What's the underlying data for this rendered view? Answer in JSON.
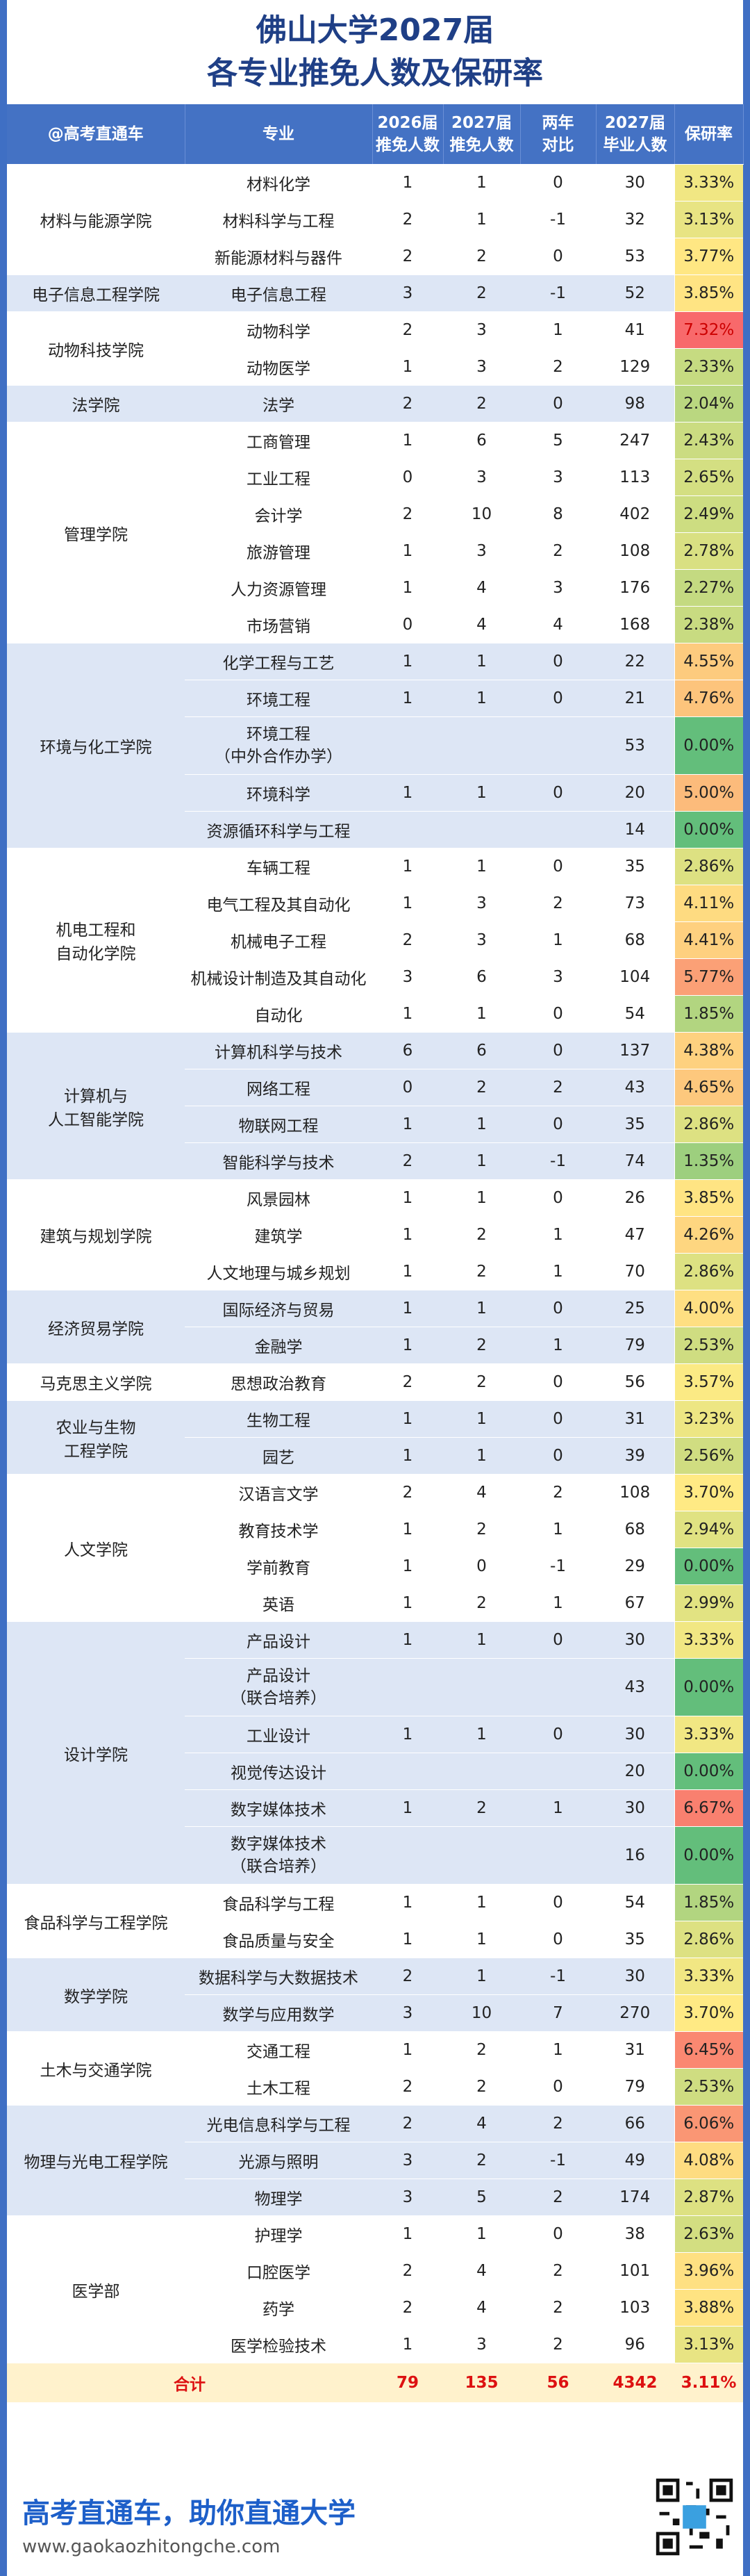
{
  "header": {
    "title_line1": "佛山大学2027届",
    "title_line2": "各专业推免人数及保研率"
  },
  "table": {
    "columns": [
      "@高考直通车",
      "专业",
      "2026届\n推免人数",
      "2027届\n推免人数",
      "两年\n对比",
      "2027届\n毕业人数",
      "保研率"
    ],
    "groups": [
      {
        "college": "材料与能源学院",
        "rows": [
          [
            "材料化学",
            1,
            1,
            0,
            30,
            "3.33%"
          ],
          [
            "材料科学与工程",
            2,
            1,
            -1,
            32,
            "3.13%"
          ],
          [
            "新能源材料与器件",
            2,
            2,
            0,
            53,
            "3.77%"
          ]
        ]
      },
      {
        "college": "电子信息工程学院",
        "rows": [
          [
            "电子信息工程",
            3,
            2,
            -1,
            52,
            "3.85%"
          ]
        ]
      },
      {
        "college": "动物科技学院",
        "rows": [
          [
            "动物科学",
            2,
            3,
            1,
            41,
            "7.32%"
          ],
          [
            "动物医学",
            1,
            3,
            2,
            129,
            "2.33%"
          ]
        ]
      },
      {
        "college": "法学院",
        "rows": [
          [
            "法学",
            2,
            2,
            0,
            98,
            "2.04%"
          ]
        ]
      },
      {
        "college": "管理学院",
        "rows": [
          [
            "工商管理",
            1,
            6,
            5,
            247,
            "2.43%"
          ],
          [
            "工业工程",
            0,
            3,
            3,
            113,
            "2.65%"
          ],
          [
            "会计学",
            2,
            10,
            8,
            402,
            "2.49%"
          ],
          [
            "旅游管理",
            1,
            3,
            2,
            108,
            "2.78%"
          ],
          [
            "人力资源管理",
            1,
            4,
            3,
            176,
            "2.27%"
          ],
          [
            "市场营销",
            0,
            4,
            4,
            168,
            "2.38%"
          ]
        ]
      },
      {
        "college": "环境与化工学院",
        "rows": [
          [
            "化学工程与工艺",
            1,
            1,
            0,
            22,
            "4.55%"
          ],
          [
            "环境工程",
            1,
            1,
            0,
            21,
            "4.76%"
          ],
          [
            "环境工程\n（中外合作办学）",
            null,
            null,
            null,
            53,
            "0.00%"
          ],
          [
            "环境科学",
            1,
            1,
            0,
            20,
            "5.00%"
          ],
          [
            "资源循环科学与工程",
            null,
            null,
            null,
            14,
            "0.00%"
          ]
        ]
      },
      {
        "college": "机电工程和\n自动化学院",
        "rows": [
          [
            "车辆工程",
            1,
            1,
            0,
            35,
            "2.86%"
          ],
          [
            "电气工程及其自动化",
            1,
            3,
            2,
            73,
            "4.11%"
          ],
          [
            "机械电子工程",
            2,
            3,
            1,
            68,
            "4.41%"
          ],
          [
            "机械设计制造及其自动化",
            3,
            6,
            3,
            104,
            "5.77%"
          ],
          [
            "自动化",
            1,
            1,
            0,
            54,
            "1.85%"
          ]
        ]
      },
      {
        "college": "计算机与\n人工智能学院",
        "rows": [
          [
            "计算机科学与技术",
            6,
            6,
            0,
            137,
            "4.38%"
          ],
          [
            "网络工程",
            0,
            2,
            2,
            43,
            "4.65%"
          ],
          [
            "物联网工程",
            1,
            1,
            0,
            35,
            "2.86%"
          ],
          [
            "智能科学与技术",
            2,
            1,
            -1,
            74,
            "1.35%"
          ]
        ]
      },
      {
        "college": "建筑与规划学院",
        "rows": [
          [
            "风景园林",
            1,
            1,
            0,
            26,
            "3.85%"
          ],
          [
            "建筑学",
            1,
            2,
            1,
            47,
            "4.26%"
          ],
          [
            "人文地理与城乡规划",
            1,
            2,
            1,
            70,
            "2.86%"
          ]
        ]
      },
      {
        "college": "经济贸易学院",
        "rows": [
          [
            "国际经济与贸易",
            1,
            1,
            0,
            25,
            "4.00%"
          ],
          [
            "金融学",
            1,
            2,
            1,
            79,
            "2.53%"
          ]
        ]
      },
      {
        "college": "马克思主义学院",
        "rows": [
          [
            "思想政治教育",
            2,
            2,
            0,
            56,
            "3.57%"
          ]
        ]
      },
      {
        "college": "农业与生物\n工程学院",
        "rows": [
          [
            "生物工程",
            1,
            1,
            0,
            31,
            "3.23%"
          ],
          [
            "园艺",
            1,
            1,
            0,
            39,
            "2.56%"
          ]
        ]
      },
      {
        "college": "人文学院",
        "rows": [
          [
            "汉语言文学",
            2,
            4,
            2,
            108,
            "3.70%"
          ],
          [
            "教育技术学",
            1,
            2,
            1,
            68,
            "2.94%"
          ],
          [
            "学前教育",
            1,
            0,
            -1,
            29,
            "0.00%"
          ],
          [
            "英语",
            1,
            2,
            1,
            67,
            "2.99%"
          ]
        ]
      },
      {
        "college": "设计学院",
        "rows": [
          [
            "产品设计",
            1,
            1,
            0,
            30,
            "3.33%"
          ],
          [
            "产品设计\n（联合培养）",
            null,
            null,
            null,
            43,
            "0.00%"
          ],
          [
            "工业设计",
            1,
            1,
            0,
            30,
            "3.33%"
          ],
          [
            "视觉传达设计",
            null,
            null,
            null,
            20,
            "0.00%"
          ],
          [
            "数字媒体技术",
            1,
            2,
            1,
            30,
            "6.67%"
          ],
          [
            "数字媒体技术\n（联合培养）",
            null,
            null,
            null,
            16,
            "0.00%"
          ]
        ]
      },
      {
        "college": "食品科学与工程学院",
        "rows": [
          [
            "食品科学与工程",
            1,
            1,
            0,
            54,
            "1.85%"
          ],
          [
            "食品质量与安全",
            1,
            1,
            0,
            35,
            "2.86%"
          ]
        ]
      },
      {
        "college": "数学学院",
        "rows": [
          [
            "数据科学与大数据技术",
            2,
            1,
            -1,
            30,
            "3.33%"
          ],
          [
            "数学与应用数学",
            3,
            10,
            7,
            270,
            "3.70%"
          ]
        ]
      },
      {
        "college": "土木与交通学院",
        "rows": [
          [
            "交通工程",
            1,
            2,
            1,
            31,
            "6.45%"
          ],
          [
            "土木工程",
            2,
            2,
            0,
            79,
            "2.53%"
          ]
        ]
      },
      {
        "college": "物理与光电工程学院",
        "rows": [
          [
            "光电信息科学与工程",
            2,
            4,
            2,
            66,
            "6.06%"
          ],
          [
            "光源与照明",
            3,
            2,
            -1,
            49,
            "4.08%"
          ],
          [
            "物理学",
            3,
            5,
            2,
            174,
            "2.87%"
          ]
        ]
      },
      {
        "college": "医学部",
        "rows": [
          [
            "护理学",
            1,
            1,
            0,
            38,
            "2.63%"
          ],
          [
            "口腔医学",
            2,
            4,
            2,
            101,
            "3.96%"
          ],
          [
            "药学",
            2,
            4,
            2,
            103,
            "3.88%"
          ],
          [
            "医学检验技术",
            1,
            3,
            2,
            96,
            "3.13%"
          ]
        ]
      }
    ],
    "total": [
      "合计",
      79,
      135,
      56,
      4342,
      "3.11%"
    ]
  },
  "footer": {
    "slogan": "高考直通车，助你直通大学",
    "url": "www.gaokaozhitongche.com"
  }
}
